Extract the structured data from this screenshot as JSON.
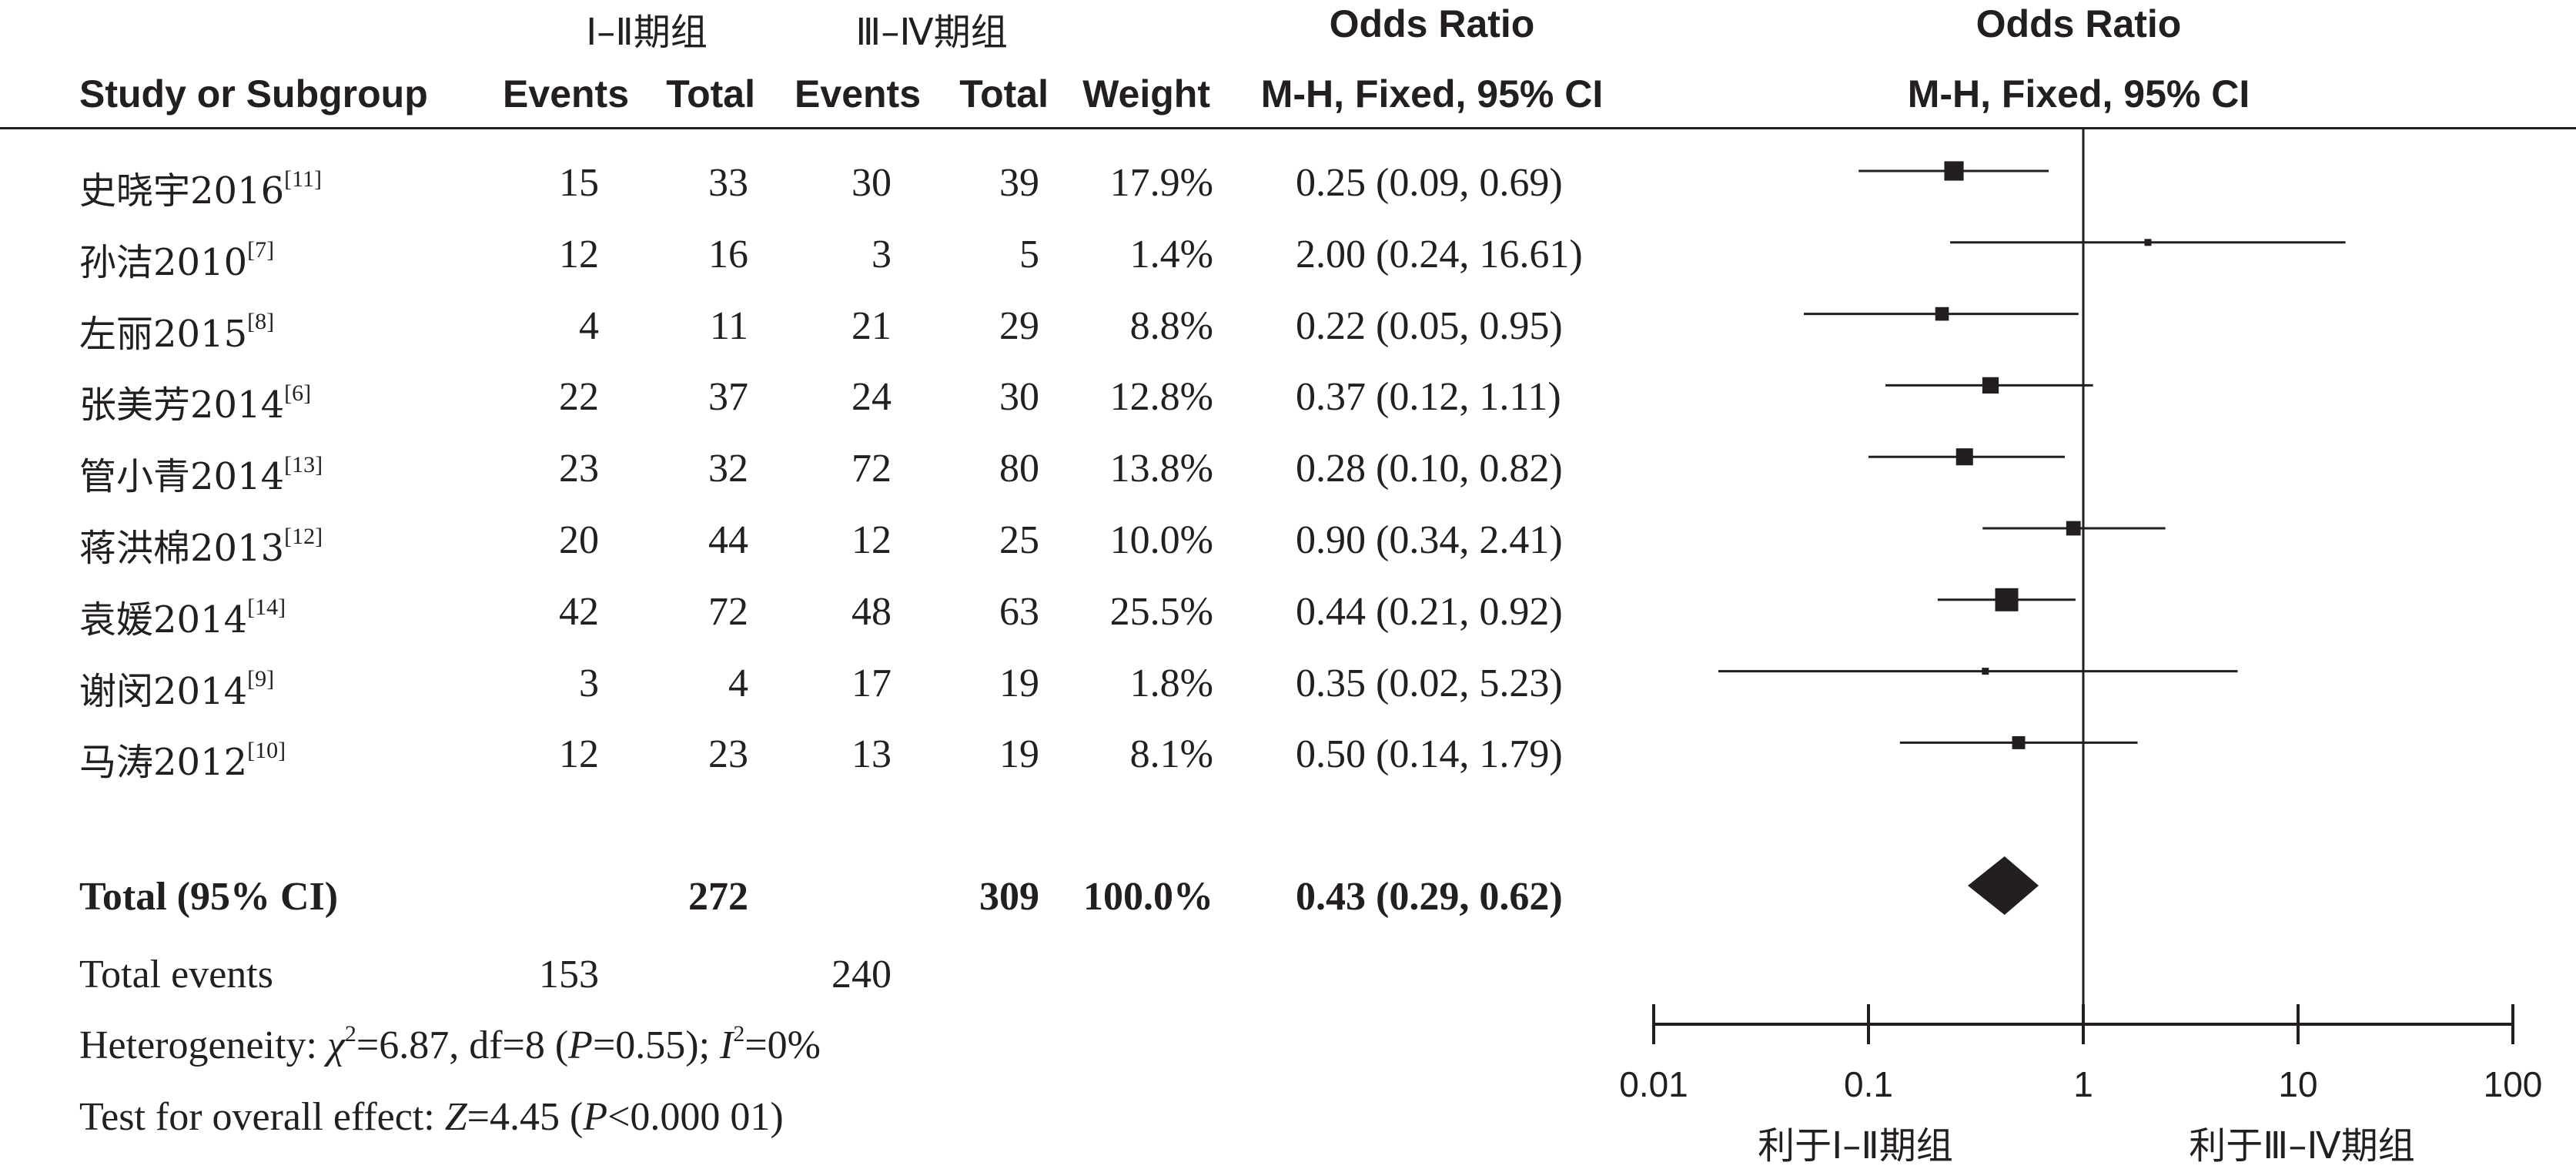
{
  "chart_data": {
    "type": "forest",
    "group_headers": {
      "g1": "Ⅰ–Ⅱ期组",
      "g2": "Ⅲ–Ⅳ期组"
    },
    "columns": {
      "study": "Study or Subgroup",
      "events1": "Events",
      "total1": "Total",
      "events2": "Events",
      "total2": "Total",
      "weight": "Weight",
      "or_title": "Odds Ratio",
      "or_method": "M-H, Fixed, 95% CI",
      "plot_title": "Odds Ratio",
      "plot_method": "M-H, Fixed, 95% CI"
    },
    "studies": [
      {
        "name": "史晓宇2016",
        "ref": "[11]",
        "events1": "15",
        "total1": "33",
        "events2": "30",
        "total2": "39",
        "weight": "17.9%",
        "ci_text": "0.25 (0.09, 0.69)",
        "or": 0.25,
        "lo": 0.09,
        "hi": 0.69,
        "weight_value": 17.9
      },
      {
        "name": "孙洁2010",
        "ref": "[7]",
        "events1": "12",
        "total1": "16",
        "events2": "3",
        "total2": "5",
        "weight": "1.4%",
        "ci_text": "2.00 (0.24, 16.61)",
        "or": 2.0,
        "lo": 0.24,
        "hi": 16.61,
        "weight_value": 1.4
      },
      {
        "name": "左丽2015",
        "ref": "[8]",
        "events1": "4",
        "total1": "11",
        "events2": "21",
        "total2": "29",
        "weight": "8.8%",
        "ci_text": "0.22 (0.05, 0.95)",
        "or": 0.22,
        "lo": 0.05,
        "hi": 0.95,
        "weight_value": 8.8
      },
      {
        "name": "张美芳2014",
        "ref": "[6]",
        "events1": "22",
        "total1": "37",
        "events2": "24",
        "total2": "30",
        "weight": "12.8%",
        "ci_text": "0.37 (0.12, 1.11)",
        "or": 0.37,
        "lo": 0.12,
        "hi": 1.11,
        "weight_value": 12.8
      },
      {
        "name": "管小青2014",
        "ref": "[13]",
        "events1": "23",
        "total1": "32",
        "events2": "72",
        "total2": "80",
        "weight": "13.8%",
        "ci_text": "0.28 (0.10, 0.82)",
        "or": 0.28,
        "lo": 0.1,
        "hi": 0.82,
        "weight_value": 13.8
      },
      {
        "name": "蒋洪棉2013",
        "ref": "[12]",
        "events1": "20",
        "total1": "44",
        "events2": "12",
        "total2": "25",
        "weight": "10.0%",
        "ci_text": "0.90 (0.34, 2.41)",
        "or": 0.9,
        "lo": 0.34,
        "hi": 2.41,
        "weight_value": 10.0
      },
      {
        "name": "袁媛2014",
        "ref": "[14]",
        "events1": "42",
        "total1": "72",
        "events2": "48",
        "total2": "63",
        "weight": "25.5%",
        "ci_text": "0.44 (0.21, 0.92)",
        "or": 0.44,
        "lo": 0.21,
        "hi": 0.92,
        "weight_value": 25.5
      },
      {
        "name": "谢闵2014",
        "ref": "[9]",
        "events1": "3",
        "total1": "4",
        "events2": "17",
        "total2": "19",
        "weight": "1.8%",
        "ci_text": "0.35 (0.02, 5.23)",
        "or": 0.35,
        "lo": 0.02,
        "hi": 5.23,
        "weight_value": 1.8
      },
      {
        "name": "马涛2012",
        "ref": "[10]",
        "events1": "12",
        "total1": "23",
        "events2": "13",
        "total2": "19",
        "weight": "8.1%",
        "ci_text": "0.50 (0.14, 1.79)",
        "or": 0.5,
        "lo": 0.14,
        "hi": 1.79,
        "weight_value": 8.1
      }
    ],
    "total": {
      "label": "Total (95% CI)",
      "total1": "272",
      "total2": "309",
      "weight": "100.0%",
      "ci_text": "0.43 (0.29, 0.62)",
      "or": 0.43,
      "lo": 0.29,
      "hi": 0.62
    },
    "total_events": {
      "label": "Total events",
      "events1": "153",
      "events2": "240"
    },
    "heterogeneity": {
      "label": "Heterogeneity: ",
      "chi": "χ",
      "chi_sup": "2",
      "chi_val": "=6.87, df=8 (",
      "p": "P",
      "p_val": "=0.55); ",
      "i": "I",
      "i_sup": "2",
      "i_val": "=0%"
    },
    "overall_effect": {
      "label": "Test for overall effect: ",
      "z": "Z",
      "z_val": "=4.45 (",
      "p": "P",
      "p_val": "<0.000 01)"
    },
    "x_axis": {
      "scale": "log",
      "ticks": [
        0.01,
        0.1,
        1,
        10,
        100
      ],
      "tick_labels": [
        "0.01",
        "0.1",
        "1",
        "10",
        "100"
      ],
      "range": [
        0.01,
        100
      ]
    },
    "favours": {
      "left": "利于Ⅰ–Ⅱ期组",
      "right": "利于Ⅲ–Ⅳ期组"
    }
  }
}
